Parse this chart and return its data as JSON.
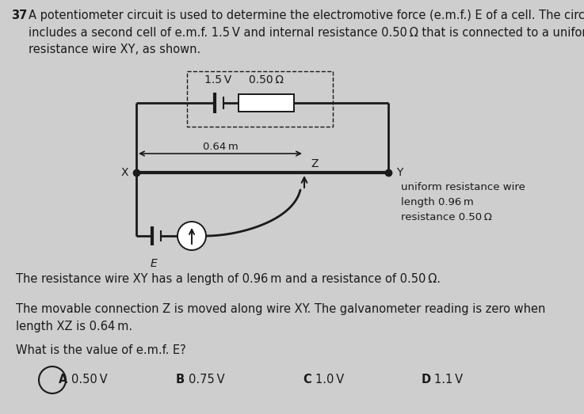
{
  "bg_color": "#cecece",
  "text_color": "#1a1a1a",
  "question_number": "37",
  "question_text": "A potentiometer circuit is used to determine the electromotive force (e.m.f.) E of a cell. The circuit\nincludes a second cell of e.m.f. 1.5 V and internal resistance 0.50 Ω that is connected to a uniform\nresistance wire XY, as shown.",
  "body_text1": "The resistance wire XY has a length of 0.96 m and a resistance of 0.50 Ω.",
  "body_text2": "The movable connection Z is moved along wire XY. The galvanometer reading is zero when\nlength XZ is 0.64 m.",
  "question_emf": "What is the value of e.m.f. E?",
  "options": [
    "A",
    "B",
    "C",
    "D"
  ],
  "option_values": [
    "0.50 V",
    "0.75 V",
    "1.0 V",
    "1.1 V"
  ],
  "answer": "A",
  "label_15V": "1.5 V",
  "label_05ohm_top": "0.50 Ω",
  "label_064m": "0.64 m",
  "label_wire": "uniform resistance wire\nlength 0.96 m\nresistance 0.50 Ω",
  "label_X": "X",
  "label_Y": "Y",
  "label_Z": "Z",
  "label_E": "E",
  "font_size_main": 10.5,
  "font_size_circuit": 10,
  "font_size_body": 10.5
}
